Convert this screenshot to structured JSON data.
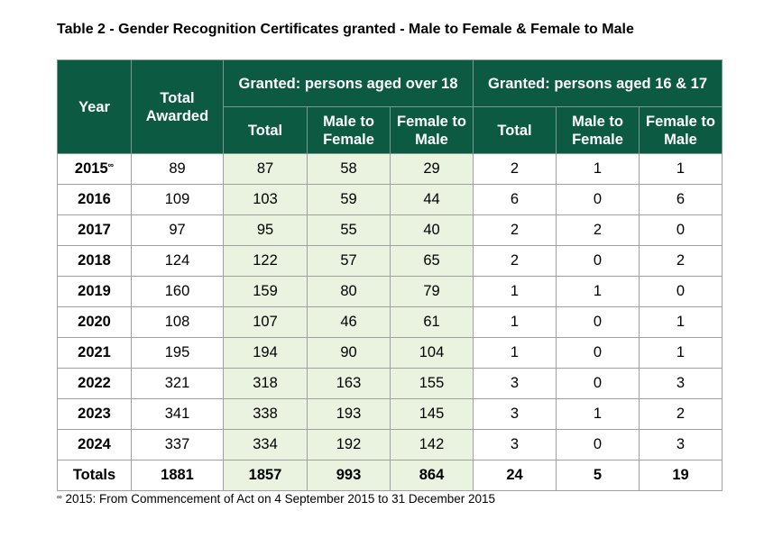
{
  "title": "Table 2 - Gender Recognition Certificates granted - Male to Female & Female to Male",
  "table": {
    "header": {
      "year": "Year",
      "total_awarded": "Total Awarded",
      "group_over_18": "Granted: persons aged over 18",
      "group_16_17": "Granted: persons aged 16 & 17",
      "sub": [
        "Total",
        "Male to Female",
        "Female to Male",
        "Total",
        "Male to Female",
        "Female to Male"
      ]
    },
    "footnote_marker": "∞",
    "rows": [
      [
        "2015",
        89,
        87,
        58,
        29,
        2,
        1,
        1
      ],
      [
        "2016",
        109,
        103,
        59,
        44,
        6,
        0,
        6
      ],
      [
        "2017",
        97,
        95,
        55,
        40,
        2,
        2,
        0
      ],
      [
        "2018",
        124,
        122,
        57,
        65,
        2,
        0,
        2
      ],
      [
        "2019",
        160,
        159,
        80,
        79,
        1,
        1,
        0
      ],
      [
        "2020",
        108,
        107,
        46,
        61,
        1,
        0,
        1
      ],
      [
        "2021",
        195,
        194,
        90,
        104,
        1,
        0,
        1
      ],
      [
        "2022",
        321,
        318,
        163,
        155,
        3,
        0,
        3
      ],
      [
        "2023",
        341,
        338,
        193,
        145,
        3,
        1,
        2
      ],
      [
        "2024",
        337,
        334,
        192,
        142,
        3,
        0,
        3
      ]
    ],
    "totals": [
      "Totals",
      1881,
      1857,
      993,
      864,
      24,
      5,
      19
    ]
  },
  "footnote": "2015: From Commencement of Act on 4 September 2015 to 31 December 2015"
}
